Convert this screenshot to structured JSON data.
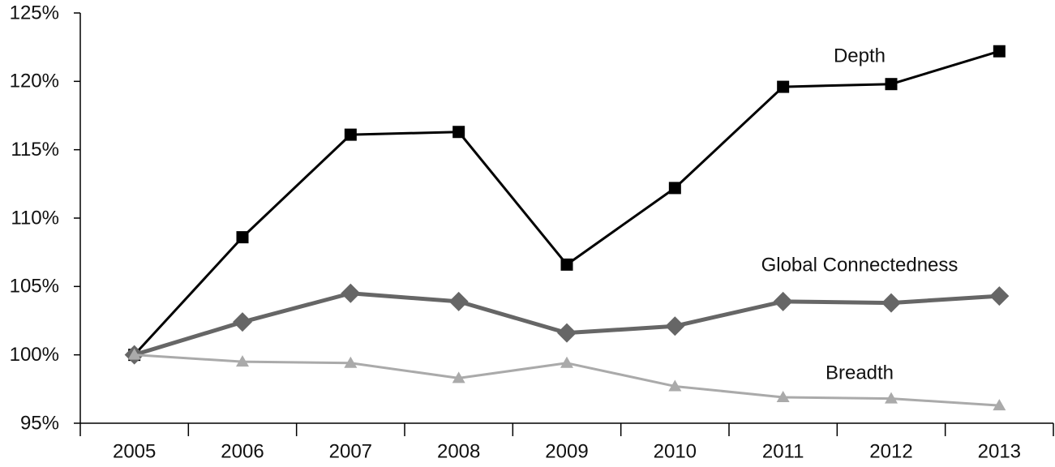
{
  "chart_data": {
    "type": "line",
    "categories": [
      "2005",
      "2006",
      "2007",
      "2008",
      "2009",
      "2010",
      "2011",
      "2012",
      "2013"
    ],
    "series": [
      {
        "name": "Depth",
        "color": "#000000",
        "marker": "square",
        "values": [
          100,
          108.6,
          116.1,
          116.3,
          106.6,
          112.2,
          119.6,
          119.8,
          122.2
        ]
      },
      {
        "name": "Global Connectedness",
        "color": "#666666",
        "marker": "diamond",
        "values": [
          100,
          102.4,
          104.5,
          103.9,
          101.6,
          102.1,
          103.9,
          103.8,
          104.3
        ]
      },
      {
        "name": "Breadth",
        "color": "#aaaaaa",
        "marker": "triangle",
        "values": [
          100,
          99.5,
          99.4,
          98.3,
          99.4,
          97.7,
          96.9,
          96.8,
          96.3
        ]
      }
    ],
    "ylim": [
      95,
      125
    ],
    "yticks": [
      {
        "value": 95,
        "label": "95%"
      },
      {
        "value": 100,
        "label": "100%"
      },
      {
        "value": 105,
        "label": "105%"
      },
      {
        "value": 110,
        "label": "110%"
      },
      {
        "value": 115,
        "label": "115%"
      },
      {
        "value": 120,
        "label": "120%"
      },
      {
        "value": 125,
        "label": "125%"
      }
    ],
    "grid": false
  }
}
